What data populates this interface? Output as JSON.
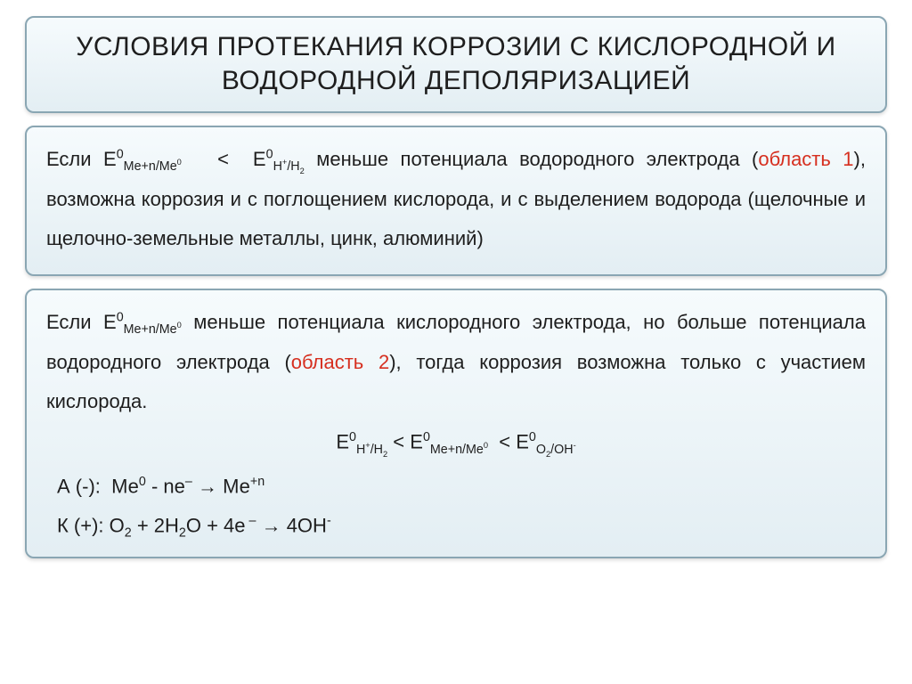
{
  "colors": {
    "panel_border": "#8aa6b3",
    "panel_bg_top": "#f6fbfd",
    "panel_bg_bottom": "#e3eef3",
    "text": "#1e1e1e",
    "accent": "#d62f1f",
    "background": "#ffffff"
  },
  "typography": {
    "title_fontsize": 30,
    "body_fontsize": 22,
    "font_family": "Arial"
  },
  "title": "УСЛОВИЯ ПРОТЕКАНИЯ КОРРОЗИИ С КИСЛОРОДНОЙ И ВОДОРОДНОЙ ДЕПОЛЯРИЗАЦИЕЙ",
  "block1": {
    "prefix": "Если ",
    "cond_lhs": "E⁰_Me+n/Me0",
    "lt": " < ",
    "cond_rhs": "E⁰_H+/H2",
    "mid1": " меньше потенциала водородного электрода (",
    "region_label": "область 1",
    "tail": "), возможна коррозия и с поглощением кислорода, и с выделением водорода (щелочные и щелочно-земельные металлы, цинк, алюминий)"
  },
  "block2": {
    "prefix": "Если ",
    "cond": "E⁰_Me+n/Me0",
    "mid1": " меньше потенциала кислородного электрода, но больше потенциала водородного электрода (",
    "region_label": "область 2",
    "tail": "), тогда коррозия возможна только с участием кислорода.",
    "inequality": "E⁰_H+/H2 < E⁰_Me+n/Me0  < E⁰_O2/OH-",
    "anode": "А (-):  Ме⁰ - ne⁻ → Ме⁺ⁿ",
    "cathode": "К (+): O₂ + 2H₂O + 4e⁻ → 4OH⁻"
  }
}
